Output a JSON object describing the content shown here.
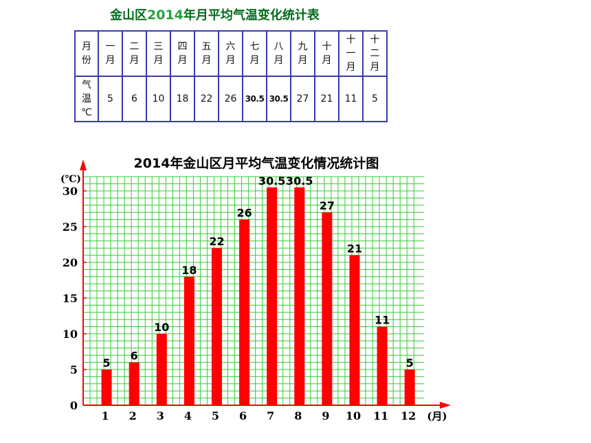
{
  "table": {
    "title_pre": "金山区",
    "title_year": "2014",
    "title_post": "年月平均气温变化统计表",
    "row1_header": [
      "月",
      "份"
    ],
    "row2_header": [
      "气",
      "温",
      "℃"
    ],
    "months": [
      [
        "一",
        "月"
      ],
      [
        "二",
        "月"
      ],
      [
        "三",
        "月"
      ],
      [
        "四",
        "月"
      ],
      [
        "五",
        "月"
      ],
      [
        "六",
        "月"
      ],
      [
        "七",
        "月"
      ],
      [
        "八",
        "月"
      ],
      [
        "九",
        "月"
      ],
      [
        "十",
        "月"
      ],
      [
        "十",
        "一",
        "月"
      ],
      [
        "十",
        "二",
        "月"
      ]
    ],
    "temps": [
      "5",
      "6",
      "10",
      "18",
      "22",
      "26",
      "30.5",
      "30.5",
      "27",
      "21",
      "11",
      "5"
    ]
  },
  "chart_data": {
    "type": "bar",
    "title": "2014年金山区月平均气温变化情况统计图",
    "ylabel": "(℃)",
    "xlabel": "(月)",
    "categories": [
      "1",
      "2",
      "3",
      "4",
      "5",
      "6",
      "7",
      "8",
      "9",
      "10",
      "11",
      "12"
    ],
    "values": [
      5,
      6,
      10,
      18,
      22,
      26,
      30.5,
      30.5,
      27,
      21,
      11,
      5
    ],
    "data_labels": [
      "5",
      "6",
      "10",
      "18",
      "22",
      "26",
      "30.5",
      "30.5",
      "27",
      "21",
      "11",
      "5"
    ],
    "yticks": [
      "0",
      "5",
      "10",
      "15",
      "20",
      "25",
      "30"
    ],
    "ylim": [
      0,
      32
    ],
    "grid": true,
    "colors": {
      "bar": "#ff0000",
      "grid": "#33cc33",
      "axis": "#ff0000"
    }
  }
}
